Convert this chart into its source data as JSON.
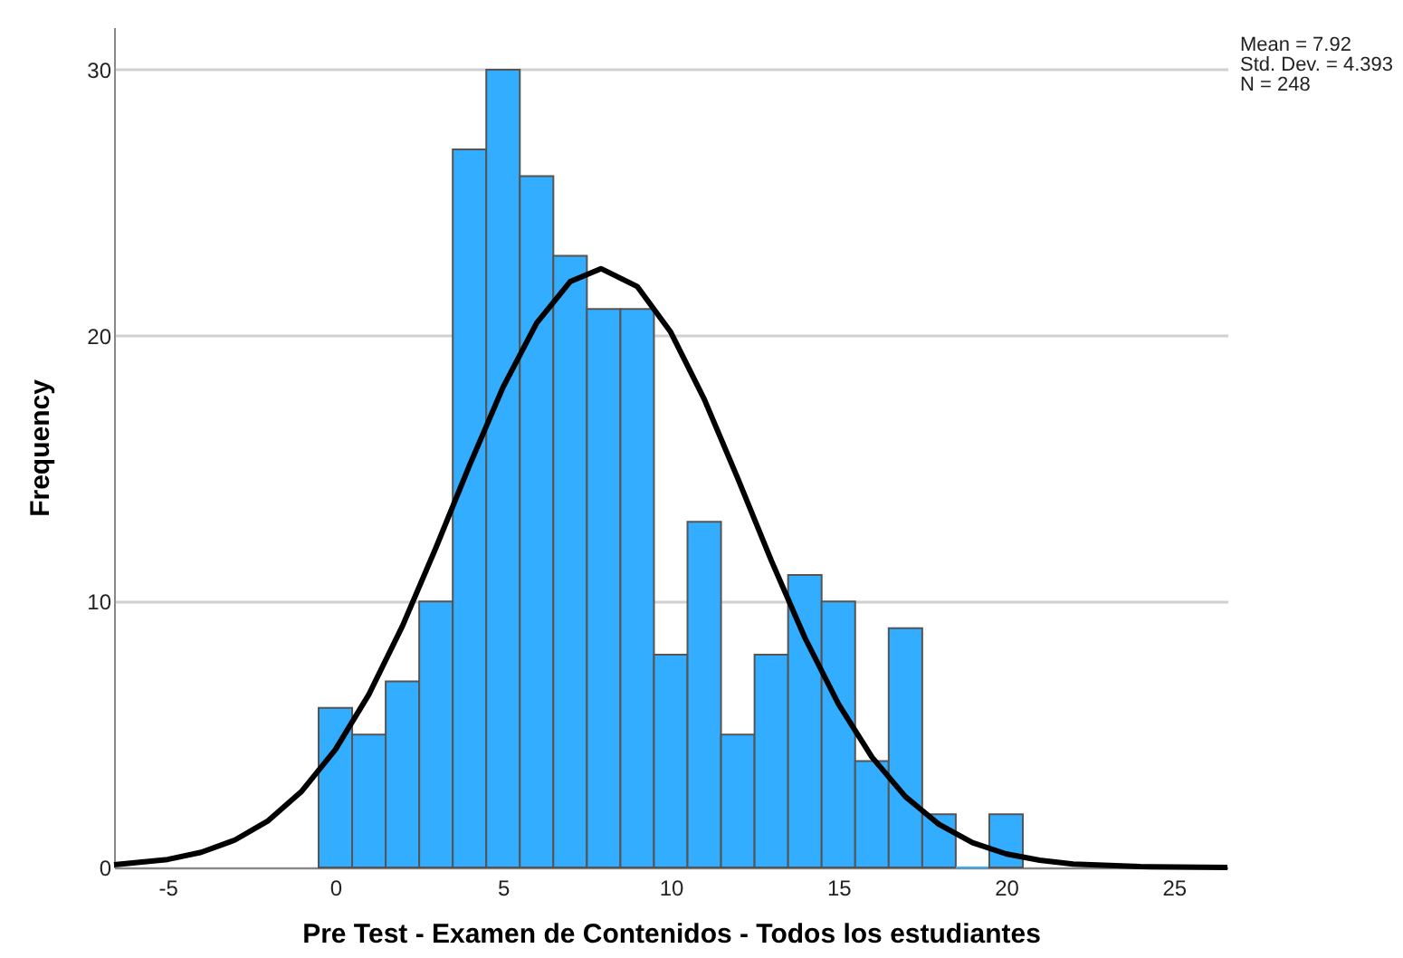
{
  "chart_data": {
    "type": "histogram",
    "xlabel": "Pre Test - Examen de Contenidos - Todos los estudiantes",
    "ylabel": "Frequency",
    "annotations": [
      "Mean = 7.92",
      "Std. Dev. = 4.393",
      "N = 248"
    ],
    "bins": [
      -0.5,
      0.5,
      1.5,
      2.5,
      3.5,
      4.5,
      5.5,
      6.5,
      7.5,
      8.5,
      9.5,
      10.5,
      11.5,
      12.5,
      13.5,
      14.5,
      15.5,
      16.5,
      17.5,
      18.5,
      19.5,
      20.5
    ],
    "values": [
      6,
      5,
      7,
      10,
      27,
      30,
      26,
      23,
      21,
      21,
      8,
      13,
      5,
      8,
      11,
      10,
      4,
      9,
      2,
      0,
      2
    ],
    "color": "#33adff",
    "series": [
      {
        "type": "line",
        "color": "#000000",
        "x": [
          -6.6,
          -5,
          -4,
          -3,
          -2,
          -1,
          0,
          1,
          2,
          3,
          4,
          5,
          6,
          7,
          7.92,
          9,
          10,
          11,
          12,
          13,
          14,
          15,
          16,
          17,
          18,
          19,
          20,
          21,
          22,
          24,
          26.6
        ],
        "values": [
          0.1,
          0.3,
          0.57,
          1.03,
          1.76,
          2.87,
          4.43,
          6.51,
          9.08,
          12.03,
          15.12,
          18.06,
          20.47,
          22.03,
          22.52,
          21.85,
          20.13,
          17.61,
          14.63,
          11.54,
          8.64,
          6.15,
          4.15,
          2.66,
          1.62,
          0.93,
          0.51,
          0.27,
          0.13,
          0.03,
          0
        ]
      }
    ],
    "xlim": [
      -6.6,
      26.6
    ],
    "xticks": [
      -5,
      0,
      5,
      10,
      15,
      20,
      25
    ],
    "ylim": [
      0,
      31.6
    ],
    "yticks": [
      0,
      10,
      20,
      30
    ],
    "grid": "y"
  }
}
